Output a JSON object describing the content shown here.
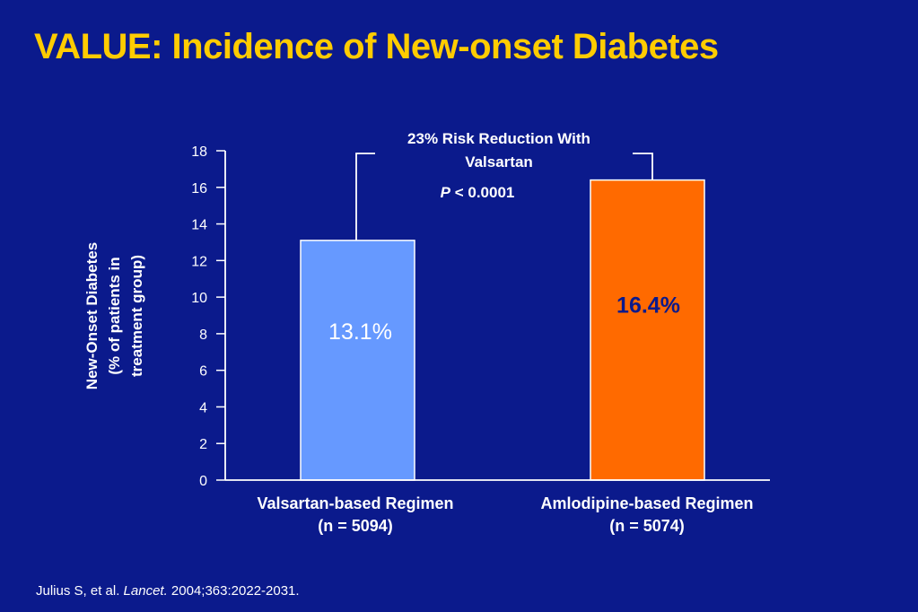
{
  "title": "VALUE: Incidence of New-onset Diabetes",
  "citation": {
    "authors": "Julius S, et al. ",
    "journal": "Lancet.",
    "details": " 2004;363:2022-2031."
  },
  "colors": {
    "background": "#0b1a8c",
    "title": "#ffcc00",
    "valsartan_bar": "#6699ff",
    "amlodipine_bar": "#ff6a00",
    "text": "#ffffff",
    "amlodipine_label": "#0b1a8c"
  },
  "chart_data": {
    "type": "bar",
    "categories": [
      "Valsartan-based Regimen",
      "Amlodipine-based Regimen"
    ],
    "category_sublabels": [
      "(n = 5094)",
      "(n = 5074)"
    ],
    "values": [
      13.1,
      16.4
    ],
    "value_labels": [
      "13.1%",
      "16.4%"
    ],
    "bar_colors": [
      "#6699ff",
      "#ff6a00"
    ],
    "ylabel_lines": [
      "New-Onset Diabetes",
      "(% of patients in",
      "treatment group)"
    ],
    "ylim": [
      0,
      18
    ],
    "yticks": [
      0,
      2,
      4,
      6,
      8,
      10,
      12,
      14,
      16,
      18
    ],
    "grid": false,
    "annotation": {
      "line1": "23% Risk Reduction With",
      "line2": "Valsartan",
      "p_symbol": "P",
      "p_text": " < 0.0001"
    }
  }
}
